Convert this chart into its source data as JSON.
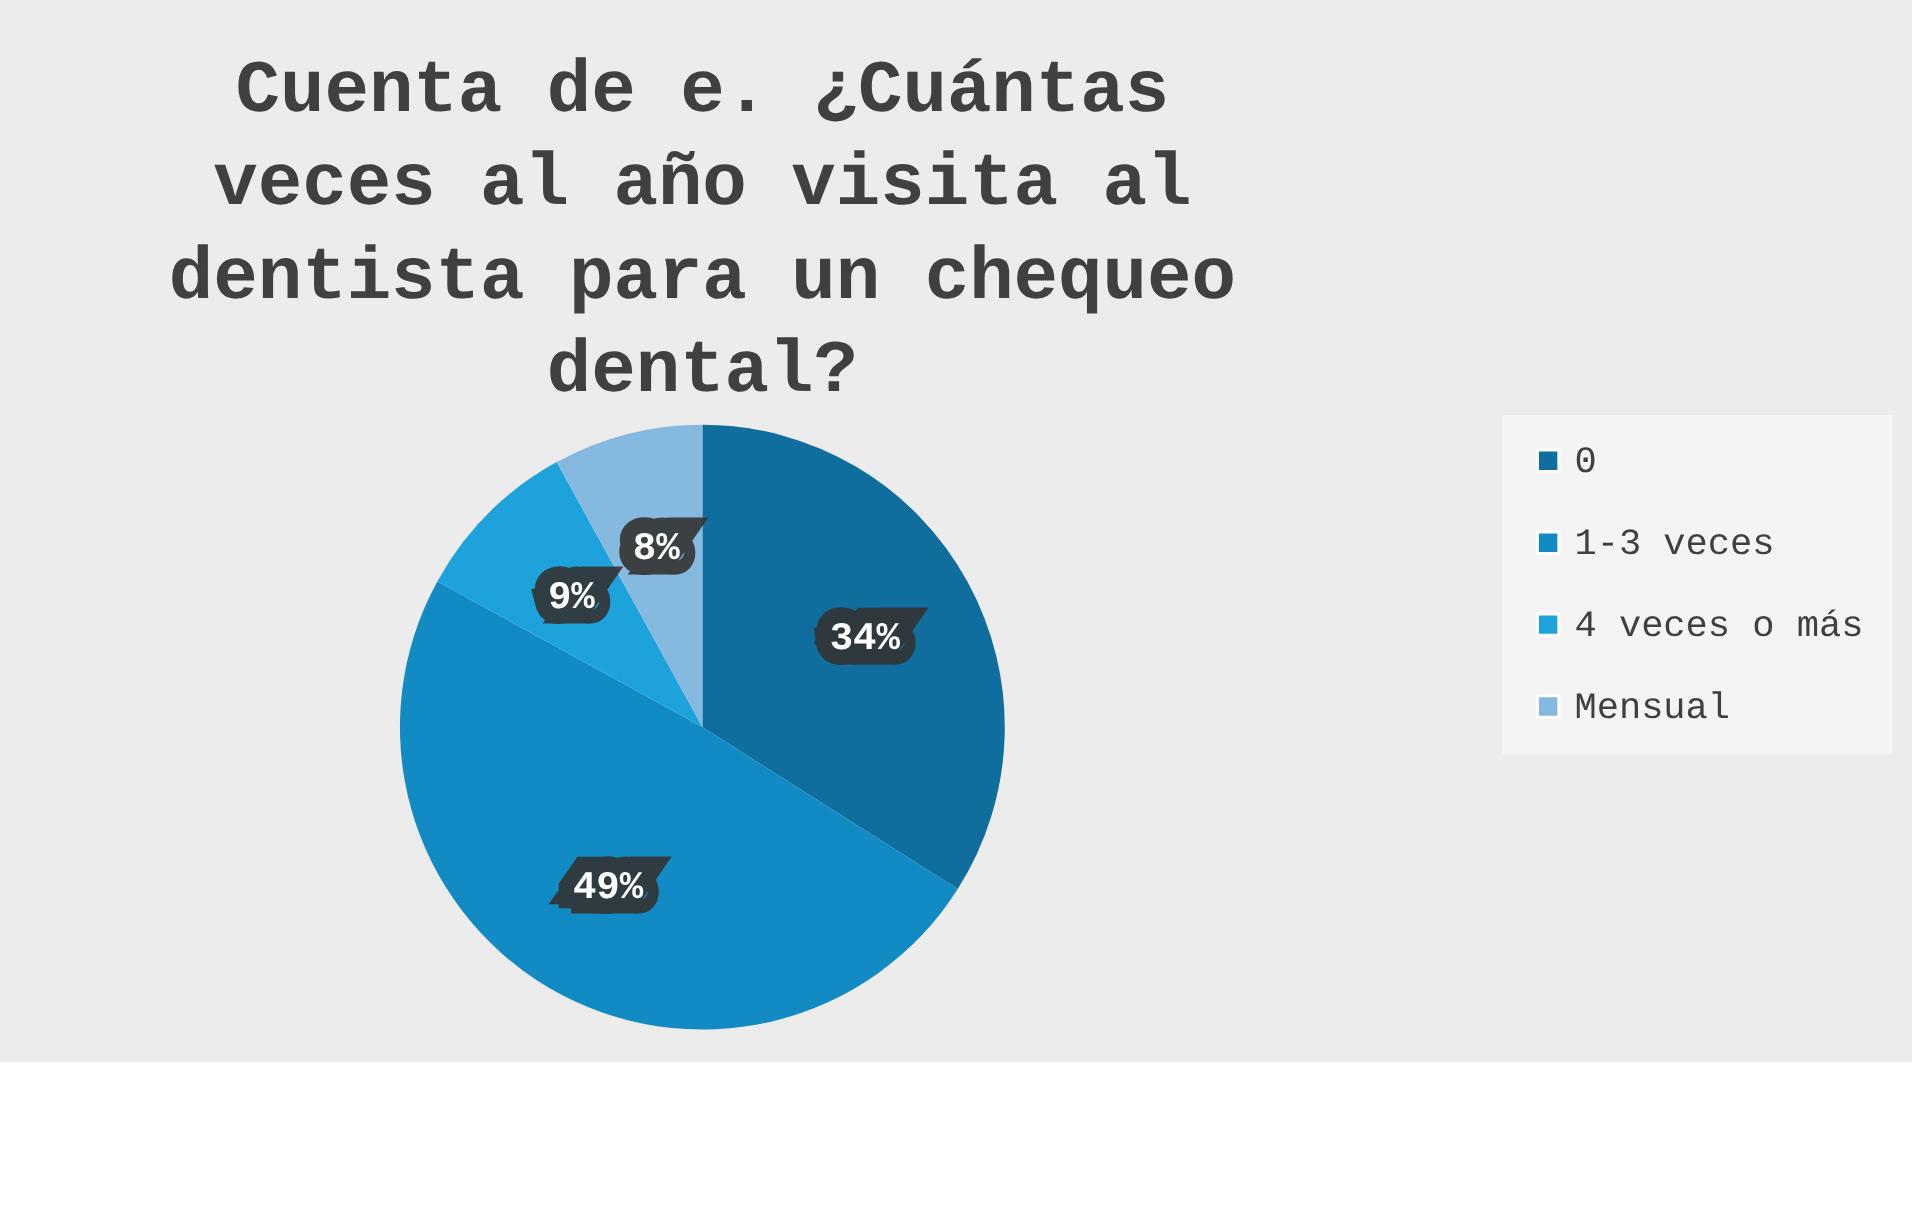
{
  "chart_data": {
    "type": "pie",
    "title": "Cuenta de e. ¿Cuántas veces al año visita al dentista para un chequeo dental?",
    "categories": [
      "0",
      "1-3 veces",
      "4 veces o más",
      "Mensual"
    ],
    "values": [
      34,
      49,
      9,
      8
    ],
    "colors": [
      "#0f6e9e",
      "#128ac4",
      "#1da2dc",
      "#86b9df"
    ],
    "value_labels": [
      "34%",
      "49%",
      "9%",
      "8%"
    ],
    "legend": "right"
  }
}
